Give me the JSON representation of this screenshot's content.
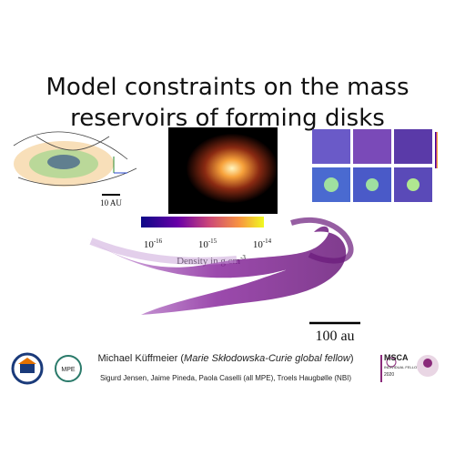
{
  "header": {
    "title_lines": [
      "Model constraints on the mass",
      "reservoirs of forming disks"
    ]
  },
  "panels": {
    "left_scale": "10 AU",
    "colorbar": {
      "ticks": [
        {
          "base": "10",
          "exp": "-16"
        },
        {
          "base": "10",
          "exp": "-15"
        },
        {
          "base": "10",
          "exp": "-14"
        }
      ],
      "label": {
        "text": "Density in g cm",
        "exp": "-3"
      }
    },
    "main_scale": "100 au"
  },
  "authors": {
    "name": "Michael Küffmeier",
    "affiliation_note": "Marie Skłodowska-Curie global fellow",
    "coauthors": "Sigurd Jensen, Jaime Pineda, Paola Caselli (all MPE), Troels Haugbølle (NBI)"
  },
  "logos": {
    "mpe": "MPE",
    "msca": "MSCA",
    "msca_sub": "INDIVIDUAL FELLOWSHIPS",
    "year": "2020"
  }
}
